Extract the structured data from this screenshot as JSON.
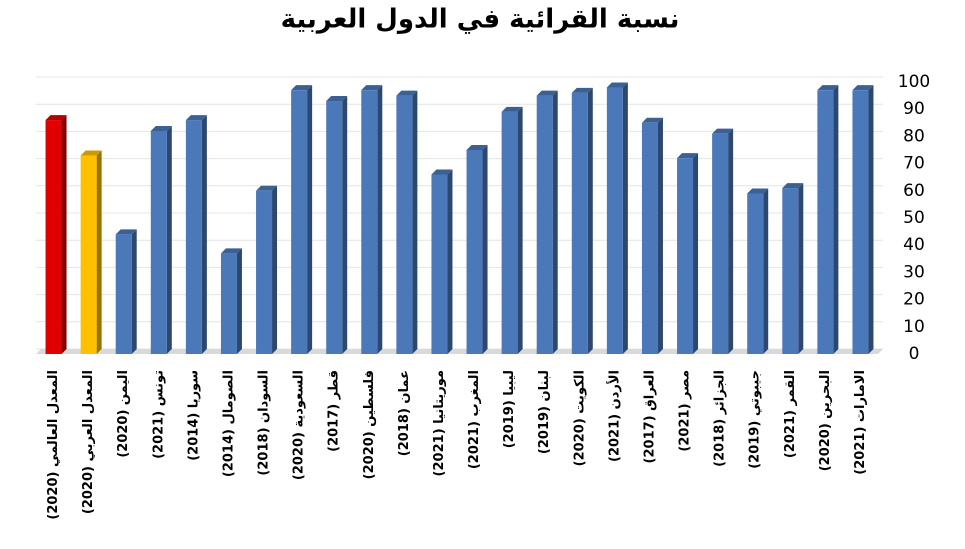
{
  "chart_data": {
    "type": "bar",
    "title": "نسبة القرائية في الدول العربية",
    "categories": [
      "المعدل العالمي (2020)",
      "المعدل العربي (2020)",
      "اليمن (2020)",
      "تونس (2021)",
      "سوريا (2014)",
      "الصومال (2014)",
      "السودان (2018)",
      "السعودية (2020)",
      "قطر (2017)",
      "فلسطين (2020)",
      "عمان (2018)",
      "موريتانيا (2021)",
      "المغرب (2021)",
      "ليبيا (2019)",
      "لبنان (2019)",
      "الكويت (2020)",
      "الأردن (2021)",
      "العراق (2017)",
      "مصر (2021)",
      "الجزائر (2018)",
      "جيبوتي (2019)",
      "القمر (2021)",
      "البحرين (2020)",
      "الامارات (2021)"
    ],
    "values": [
      86,
      73,
      44,
      82,
      86,
      37,
      60,
      97,
      93,
      97,
      95,
      66,
      75,
      89,
      95,
      96,
      98,
      85,
      72,
      81,
      59,
      61,
      97,
      97
    ],
    "colors": [
      "#e00000",
      "#ffc000",
      "#4a78b8",
      "#4a78b8",
      "#4a78b8",
      "#4a78b8",
      "#4a78b8",
      "#4a78b8",
      "#4a78b8",
      "#4a78b8",
      "#4a78b8",
      "#4a78b8",
      "#4a78b8",
      "#4a78b8",
      "#4a78b8",
      "#4a78b8",
      "#4a78b8",
      "#4a78b8",
      "#4a78b8",
      "#4a78b8",
      "#4a78b8",
      "#4a78b8",
      "#4a78b8",
      "#4a78b8"
    ],
    "ylim": [
      0,
      100
    ],
    "yticks": [
      0,
      10,
      20,
      30,
      40,
      50,
      60,
      70,
      80,
      90,
      100
    ],
    "y_axis_side": "right",
    "grid": true
  }
}
